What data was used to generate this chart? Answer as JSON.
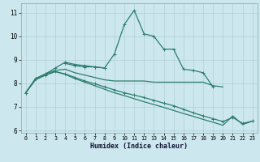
{
  "xlabel": "Humidex (Indice chaleur)",
  "x": [
    0,
    1,
    2,
    3,
    4,
    5,
    6,
    7,
    8,
    9,
    10,
    11,
    12,
    13,
    14,
    15,
    16,
    17,
    18,
    19,
    20,
    21,
    22,
    23
  ],
  "line1_y": [
    7.6,
    8.2,
    8.4,
    8.65,
    8.9,
    8.8,
    8.75,
    8.7,
    8.65,
    9.25,
    10.5,
    11.1,
    10.1,
    10.0,
    9.45,
    9.45,
    8.6,
    8.55,
    8.45,
    7.85,
    null,
    null,
    null,
    null
  ],
  "line2_y": [
    null,
    null,
    null,
    null,
    8.85,
    8.75,
    8.7,
    8.7,
    8.65,
    null,
    null,
    null,
    null,
    null,
    null,
    null,
    null,
    null,
    null,
    null,
    null,
    null,
    null,
    null
  ],
  "line3_y": [
    7.6,
    8.2,
    8.4,
    8.55,
    8.6,
    8.45,
    8.35,
    8.25,
    8.15,
    8.1,
    8.1,
    8.1,
    8.1,
    8.05,
    8.05,
    8.05,
    8.05,
    8.05,
    8.05,
    7.9,
    7.85,
    null,
    null,
    null
  ],
  "line4_y": [
    7.6,
    8.2,
    8.35,
    8.5,
    8.4,
    8.25,
    8.1,
    7.98,
    7.85,
    7.72,
    7.6,
    7.5,
    7.4,
    7.28,
    7.16,
    7.05,
    6.9,
    6.75,
    6.62,
    6.5,
    6.38,
    6.55,
    6.3,
    6.4
  ],
  "line5_y": [
    7.6,
    8.15,
    8.35,
    8.5,
    8.38,
    8.2,
    8.05,
    7.9,
    7.75,
    7.6,
    7.48,
    7.35,
    7.22,
    7.1,
    6.98,
    6.85,
    6.72,
    6.6,
    6.47,
    6.35,
    6.22,
    6.62,
    6.25,
    6.4
  ],
  "line1_markers": [
    0,
    1,
    2,
    3,
    4,
    5,
    6,
    7,
    8,
    9,
    10,
    11,
    12,
    13,
    14,
    15,
    16,
    17,
    18,
    19
  ],
  "line2_markers": [
    4,
    5,
    6,
    7,
    8
  ],
  "line4_markers": [
    23
  ],
  "color": "#2d7d6d",
  "bg_color": "#cce8ee",
  "grid_color": "#aac8d0",
  "ylim": [
    5.9,
    11.4
  ],
  "xlim": [
    -0.5,
    23.5
  ],
  "yticks": [
    6,
    7,
    8,
    9,
    10,
    11
  ],
  "xticks": [
    0,
    1,
    2,
    3,
    4,
    5,
    6,
    7,
    8,
    9,
    10,
    11,
    12,
    13,
    14,
    15,
    16,
    17,
    18,
    19,
    20,
    21,
    22,
    23
  ]
}
